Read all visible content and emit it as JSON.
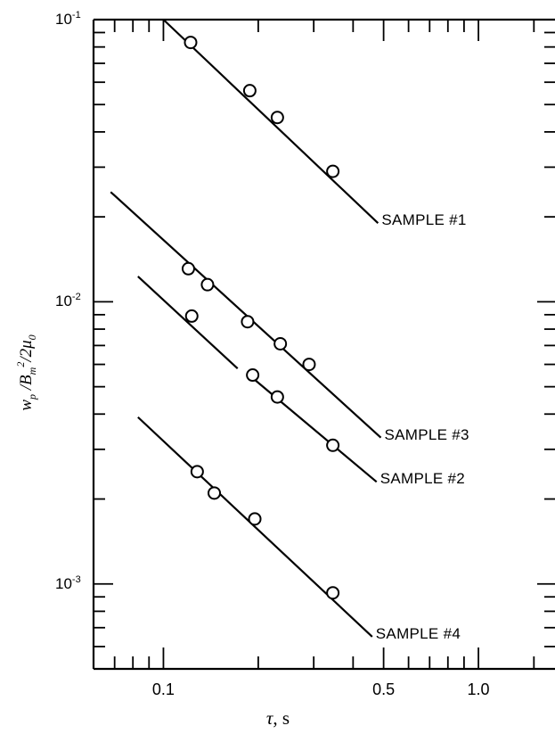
{
  "chart_data": {
    "type": "scatter",
    "title": "",
    "xlabel": "τ, s",
    "xlabel_parts": {
      "symbol": "τ",
      "unit": ", s"
    },
    "ylabel_parts": {
      "w": "w",
      "w_sub": "p",
      "mid": " /B",
      "b_sub": "m",
      "exp": "2",
      "div": "/2",
      "mu": "μ",
      "mu_sub": "0"
    },
    "x_scale": "log",
    "y_scale": "log",
    "xlim": [
      0.06,
      1.75
    ],
    "ylim": [
      0.0005,
      0.1
    ],
    "x_tick_labels": [
      {
        "value": 0.1,
        "label": "0.1"
      },
      {
        "value": 0.5,
        "label": "0.5"
      },
      {
        "value": 1.0,
        "label": "1.0"
      }
    ],
    "y_tick_labels": [
      {
        "value": 0.1,
        "base": "10",
        "exp": "-1"
      },
      {
        "value": 0.01,
        "base": "10",
        "exp": "-2"
      },
      {
        "value": 0.001,
        "base": "10",
        "exp": "-3"
      }
    ],
    "series": [
      {
        "name": "SAMPLE #1",
        "points": [
          [
            0.122,
            0.083
          ],
          [
            0.188,
            0.056
          ],
          [
            0.23,
            0.045
          ],
          [
            0.345,
            0.029
          ]
        ],
        "fit": [
          [
            0.1,
            0.1
          ],
          [
            0.48,
            0.019
          ]
        ]
      },
      {
        "name": "SAMPLE #3",
        "points": [
          [
            0.12,
            0.0131
          ],
          [
            0.138,
            0.0115
          ],
          [
            0.185,
            0.0085
          ],
          [
            0.235,
            0.0071
          ],
          [
            0.29,
            0.006
          ]
        ],
        "fit": [
          [
            0.068,
            0.0245
          ],
          [
            0.49,
            0.0033
          ]
        ]
      },
      {
        "name": "SAMPLE #2",
        "points": [
          [
            0.123,
            0.0089
          ],
          [
            0.192,
            0.0055
          ],
          [
            0.23,
            0.0046
          ],
          [
            0.345,
            0.0031
          ]
        ],
        "fit_segments": [
          [
            [
              0.083,
              0.0123
            ],
            [
              0.172,
              0.0058
            ]
          ],
          [
            [
              0.187,
              0.0055
            ],
            [
              0.475,
              0.0023
            ]
          ]
        ]
      },
      {
        "name": "SAMPLE #4",
        "points": [
          [
            0.128,
            0.0025
          ],
          [
            0.145,
            0.0021
          ],
          [
            0.195,
            0.0017
          ],
          [
            0.345,
            0.00093
          ]
        ],
        "fit": [
          [
            0.083,
            0.0039
          ],
          [
            0.46,
            0.00065
          ]
        ]
      }
    ]
  }
}
